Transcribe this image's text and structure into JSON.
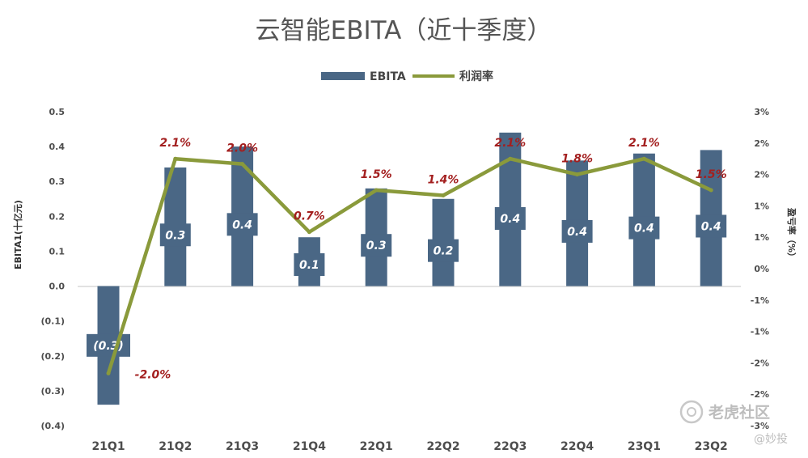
{
  "chart_data": {
    "type": "bar",
    "title": "云智能EBITA（近十季度）",
    "categories": [
      "21Q1",
      "21Q2",
      "21Q3",
      "21Q4",
      "22Q1",
      "22Q2",
      "22Q3",
      "22Q4",
      "23Q1",
      "23Q2"
    ],
    "series": [
      {
        "name": "EBITA",
        "type": "bar",
        "axis": "left",
        "color": "#4a6785",
        "values": [
          -0.34,
          0.34,
          0.4,
          0.14,
          0.28,
          0.25,
          0.44,
          0.36,
          0.38,
          0.39
        ],
        "data_labels": [
          "(0.3)",
          "0.3",
          "0.4",
          "0.1",
          "0.3",
          "0.2",
          "0.4",
          "0.4",
          "0.4",
          "0.4"
        ]
      },
      {
        "name": "利润率",
        "type": "line",
        "axis": "right",
        "color": "#8a9a3b",
        "values": [
          -2.0,
          2.1,
          2.0,
          0.7,
          1.5,
          1.4,
          2.1,
          1.8,
          2.1,
          1.5
        ],
        "data_labels": [
          "-2.0%",
          "2.1%",
          "2.0%",
          "0.7%",
          "1.5%",
          "1.4%",
          "2.1%",
          "1.8%",
          "2.1%",
          "1.5%"
        ]
      }
    ],
    "ylabel": "EBITA1(十亿元)",
    "ylabel_right": "盈亏率（%）",
    "ylim": [
      -0.4,
      0.5
    ],
    "yticks": [
      "0.5",
      "0.4",
      "0.3",
      "0.2",
      "0.1",
      "0.0",
      "(0.1)",
      "(0.2)",
      "(0.3)",
      "(0.4)"
    ],
    "ylim_right": [
      -3,
      3
    ],
    "yticks_right": [
      "3%",
      "2%",
      "2%",
      "1%",
      "1%",
      "0%",
      "-1%",
      "-1%",
      "-2%",
      "-2%",
      "-3%"
    ],
    "legend_position": "top-center",
    "grid": false
  },
  "watermark": {
    "brand": "老虎社区",
    "handle": "@妙投",
    "icon": "tiger-logo-icon"
  }
}
